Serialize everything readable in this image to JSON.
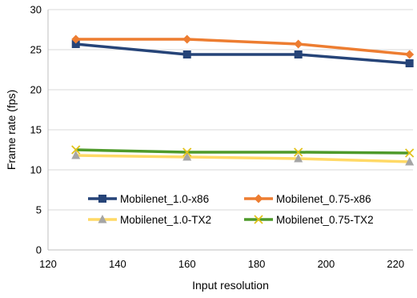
{
  "chart_data": {
    "type": "line",
    "title": "",
    "xlabel": "Input resolution",
    "ylabel": "Frame rate (fps)",
    "xlim": [
      120,
      225
    ],
    "ylim": [
      0,
      30
    ],
    "xticks": [
      120,
      140,
      160,
      180,
      200,
      220
    ],
    "yticks": [
      0,
      5,
      10,
      15,
      20,
      25,
      30
    ],
    "grid": "horizontal",
    "legend_position": "lower-center, inside plot area, two columns",
    "x": [
      128,
      160,
      192,
      224
    ],
    "series": [
      {
        "name": "Mobilenet_1.0-x86",
        "values": [
          25.7,
          24.4,
          24.4,
          23.3
        ],
        "color": "#264478",
        "marker": "square"
      },
      {
        "name": "Mobilenet_0.75-x86",
        "values": [
          26.3,
          26.3,
          25.7,
          24.4
        ],
        "color": "#ED7D31",
        "marker": "diamond"
      },
      {
        "name": "Mobilenet_1.0-TX2",
        "values": [
          11.8,
          11.6,
          11.4,
          11.0
        ],
        "color": "#FFD966",
        "marker": "triangle",
        "marker_color": "#A5A5A5"
      },
      {
        "name": "Mobilenet_0.75-TX2",
        "values": [
          12.5,
          12.2,
          12.2,
          12.1
        ],
        "color": "#4E9A2A",
        "marker": "x",
        "marker_color": "#E2C21A"
      }
    ]
  }
}
